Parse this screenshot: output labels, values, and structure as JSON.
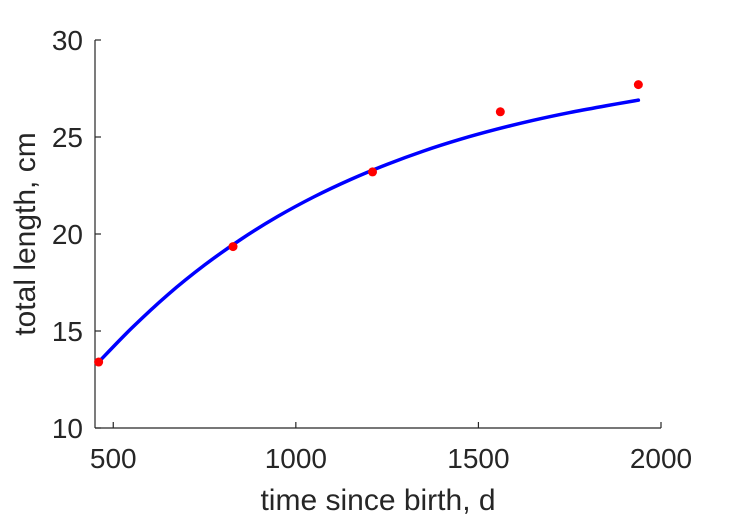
{
  "chart_data": {
    "type": "scatter",
    "xlabel": "time since birth, d",
    "ylabel": "total length, cm",
    "xlim": [
      450,
      2000
    ],
    "ylim": [
      10,
      30
    ],
    "xticks": [
      500,
      1000,
      1500,
      2000
    ],
    "yticks": [
      10,
      15,
      20,
      25,
      30
    ],
    "xtick_labels": [
      "500",
      "1000",
      "1500",
      "2000"
    ],
    "ytick_labels": [
      "10",
      "15",
      "20",
      "25",
      "30"
    ],
    "grid": false,
    "series": [
      {
        "kind": "points",
        "color": "#ff0000",
        "x": [
          460,
          828,
          1210,
          1560,
          1938
        ],
        "y": [
          13.4,
          19.35,
          23.2,
          26.3,
          27.7
        ]
      },
      {
        "kind": "line",
        "color": "#0000ff",
        "x": [
          460,
          550,
          650,
          750,
          850,
          950,
          1050,
          1150,
          1250,
          1350,
          1450,
          1550,
          1650,
          1750,
          1850,
          1938
        ],
        "y": [
          13.4,
          15.14,
          16.88,
          18.4,
          19.73,
          20.9,
          21.92,
          22.81,
          23.59,
          24.28,
          24.88,
          25.4,
          25.86,
          26.26,
          26.61,
          26.9
        ]
      }
    ]
  }
}
